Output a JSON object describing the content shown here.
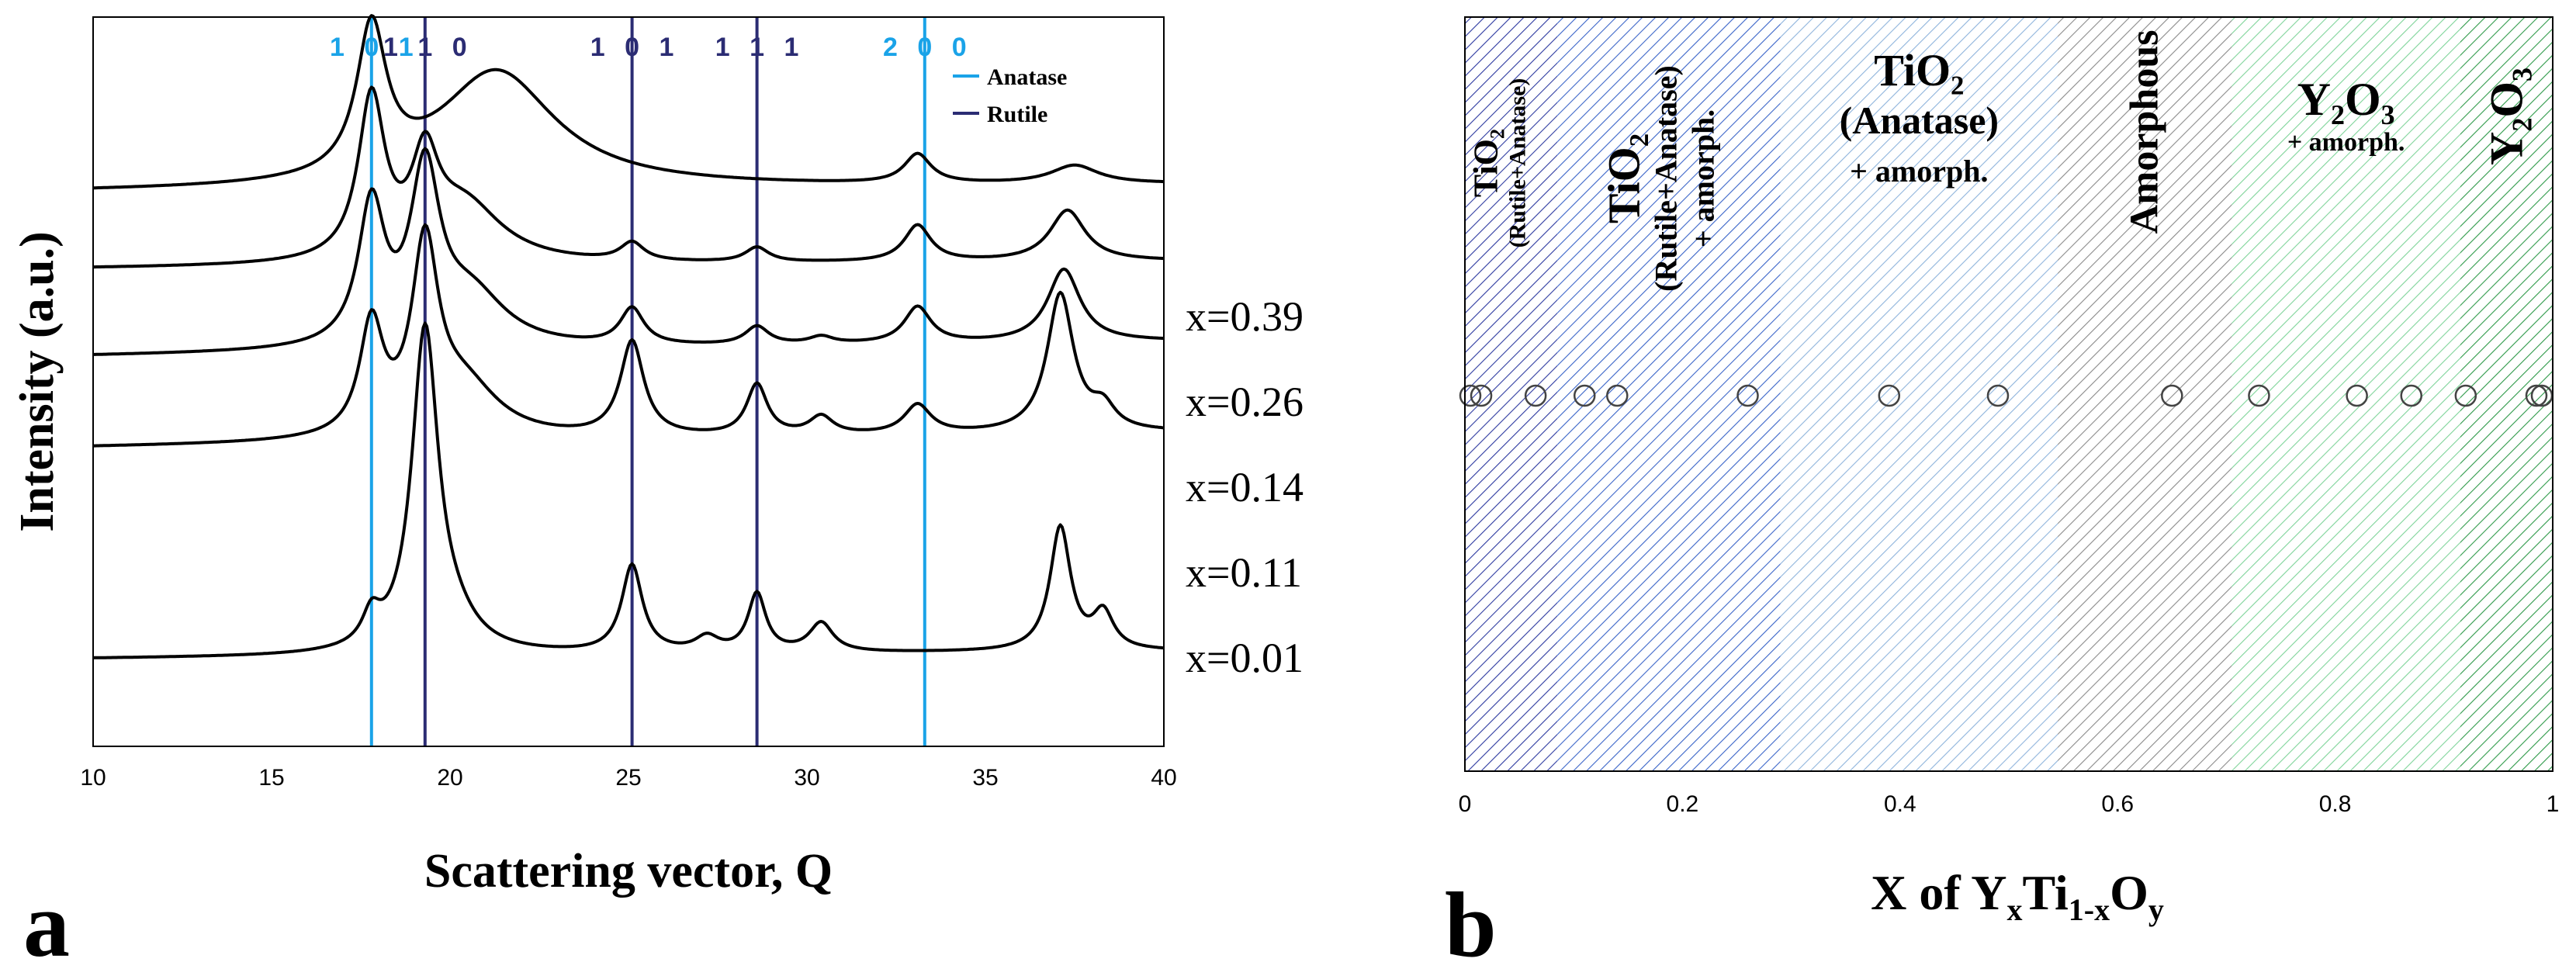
{
  "chart_data": [
    {
      "panel": "a",
      "type": "line",
      "xlabel": "Scattering vector, Q",
      "ylabel": "Intensity (a.u.)",
      "xlim": [
        10,
        40
      ],
      "xticks": [
        10,
        15,
        20,
        25,
        30,
        35,
        40
      ],
      "legend": {
        "position": "top-right",
        "entries": [
          {
            "label": "Anatase",
            "color": "#1aa3e8"
          },
          {
            "label": "Rutile",
            "color": "#2b2c73"
          }
        ]
      },
      "reference_lines": [
        {
          "q": 17.8,
          "phase": "Anatase",
          "label": "1 0 1",
          "color": "#1aa3e8"
        },
        {
          "q": 19.3,
          "phase": "Rutile",
          "label": "1 1 0",
          "color": "#2b2c73"
        },
        {
          "q": 25.1,
          "phase": "Rutile",
          "label": "1 0 1",
          "color": "#2b2c73"
        },
        {
          "q": 28.6,
          "phase": "Rutile",
          "label": "1 1 1",
          "color": "#2b2c73"
        },
        {
          "q": 33.3,
          "phase": "Anatase",
          "label": "2 0 0",
          "color": "#1aa3e8"
        }
      ],
      "series": [
        {
          "name": "x=0.39",
          "baseline": 0.76,
          "slope": 0.01,
          "peaks": [
            [
              17.8,
              0.2,
              0.5
            ],
            [
              21.3,
              0.16,
              2.0
            ],
            [
              33.1,
              0.04,
              0.45
            ],
            [
              37.5,
              0.025,
              0.8
            ]
          ]
        },
        {
          "name": "x=0.26",
          "baseline": 0.655,
          "slope": 0.01,
          "peaks": [
            [
              17.8,
              0.22,
              0.45
            ],
            [
              19.3,
              0.12,
              0.45
            ],
            [
              20.4,
              0.08,
              1.3
            ],
            [
              25.1,
              0.025,
              0.4
            ],
            [
              28.6,
              0.02,
              0.4
            ],
            [
              33.1,
              0.05,
              0.45
            ],
            [
              37.3,
              0.07,
              0.6
            ]
          ]
        },
        {
          "name": "x=0.14",
          "baseline": 0.535,
          "slope": 0.02,
          "peaks": [
            [
              17.8,
              0.19,
              0.45
            ],
            [
              19.3,
              0.23,
              0.5
            ],
            [
              20.6,
              0.07,
              1.2
            ],
            [
              25.1,
              0.05,
              0.4
            ],
            [
              28.6,
              0.025,
              0.4
            ],
            [
              30.4,
              0.01,
              0.4
            ],
            [
              33.1,
              0.05,
              0.45
            ],
            [
              37.2,
              0.1,
              0.55
            ]
          ]
        },
        {
          "name": "x=0.11",
          "baseline": 0.41,
          "slope": 0.02,
          "peaks": [
            [
              17.8,
              0.15,
              0.4
            ],
            [
              19.3,
              0.25,
              0.45
            ],
            [
              20.4,
              0.07,
              1.2
            ],
            [
              25.1,
              0.13,
              0.4
            ],
            [
              28.6,
              0.07,
              0.35
            ],
            [
              30.4,
              0.025,
              0.4
            ],
            [
              33.1,
              0.04,
              0.45
            ],
            [
              37.1,
              0.19,
              0.45
            ],
            [
              38.3,
              0.03,
              0.4
            ]
          ]
        },
        {
          "name": "x=0.01",
          "baseline": 0.12,
          "slope": 0.01,
          "peaks": [
            [
              17.8,
              0.04,
              0.3
            ],
            [
              19.3,
              0.44,
              0.45
            ],
            [
              20.1,
              0.03,
              0.8
            ],
            [
              25.1,
              0.12,
              0.35
            ],
            [
              27.2,
              0.02,
              0.4
            ],
            [
              28.6,
              0.08,
              0.3
            ],
            [
              30.4,
              0.04,
              0.4
            ],
            [
              37.1,
              0.17,
              0.35
            ],
            [
              38.3,
              0.05,
              0.35
            ]
          ]
        }
      ]
    },
    {
      "panel": "b",
      "type": "scatter",
      "xlabel_parts": [
        "X of Y",
        "x",
        "Ti",
        "1-x",
        "O",
        "y"
      ],
      "xlim": [
        0,
        1
      ],
      "xticks": [
        "0",
        "0.2",
        "0.4",
        "0.6",
        "0.8",
        "1"
      ],
      "points_x": [
        0.005,
        0.015,
        0.065,
        0.11,
        0.14,
        0.26,
        0.39,
        0.49,
        0.65,
        0.73,
        0.82,
        0.87,
        0.92,
        0.985,
        0.99
      ],
      "regions": [
        {
          "from": 0.0,
          "to": 0.085,
          "color": "#2d3aa0",
          "lines": [
            "TiO₂",
            "(Rutile+Anatase)"
          ]
        },
        {
          "from": 0.085,
          "to": 0.29,
          "color": "#3a64c8",
          "lines": [
            "TiO₂",
            "(Rutile+Anatase)",
            "+ amorph."
          ]
        },
        {
          "from": 0.29,
          "to": 0.545,
          "color": "#8fb4dc",
          "lines": [
            "TiO₂",
            "(Anatase)",
            "+ amorph."
          ]
        },
        {
          "from": 0.545,
          "to": 0.705,
          "color": "#8a8a8a",
          "lines": [
            "Amorphous"
          ]
        },
        {
          "from": 0.705,
          "to": 0.915,
          "color": "#7fd49a",
          "lines": [
            "Y₂O₃",
            "+ amorph."
          ]
        },
        {
          "from": 0.915,
          "to": 1.0,
          "color": "#2f9a4a",
          "lines": [
            "Y₂O₃"
          ]
        }
      ]
    }
  ]
}
